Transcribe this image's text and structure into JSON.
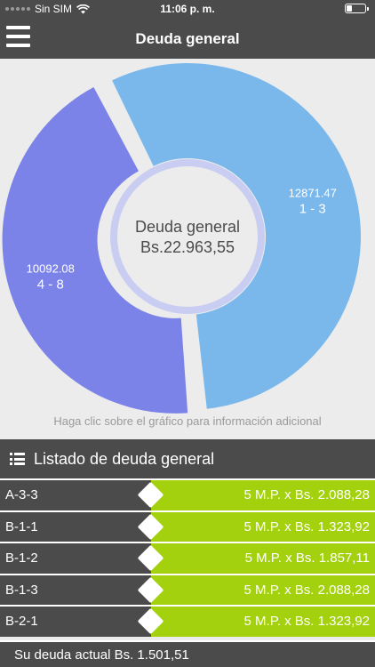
{
  "status_bar": {
    "carrier": "Sin SIM",
    "time": "11:06 p. m."
  },
  "header": {
    "title": "Deuda general"
  },
  "chart_data": {
    "type": "pie",
    "center_title": "Deuda general",
    "center_value": "Bs.22.963,55",
    "slices": [
      {
        "label": "1 - 3",
        "value": 12871.47,
        "value_text": "12871.47",
        "color": "#7ab8ec"
      },
      {
        "label": "4 - 8",
        "value": 10092.08,
        "value_text": "10092.08",
        "color": "#7b83e8"
      }
    ],
    "hint": "Haga clic sobre el gráfico para información adicional"
  },
  "list": {
    "title": "Listado de deuda general",
    "rows": [
      {
        "code": "A-3-3",
        "amount": "5 M.P. x Bs. 2.088,28"
      },
      {
        "code": "B-1-1",
        "amount": "5 M.P. x Bs. 1.323,92"
      },
      {
        "code": "B-1-2",
        "amount": "5 M.P. x Bs. 1.857,11"
      },
      {
        "code": "B-1-3",
        "amount": "5 M.P. x Bs. 2.088,28"
      },
      {
        "code": "B-2-1",
        "amount": "5 M.P. x Bs. 1.323,92"
      }
    ]
  },
  "footer": {
    "text": "Su deuda actual Bs. 1.501,51"
  },
  "icons": {
    "menu": "hamburger-menu-icon",
    "list": "list-icon",
    "wifi": "wifi-icon",
    "battery": "battery-icon"
  }
}
